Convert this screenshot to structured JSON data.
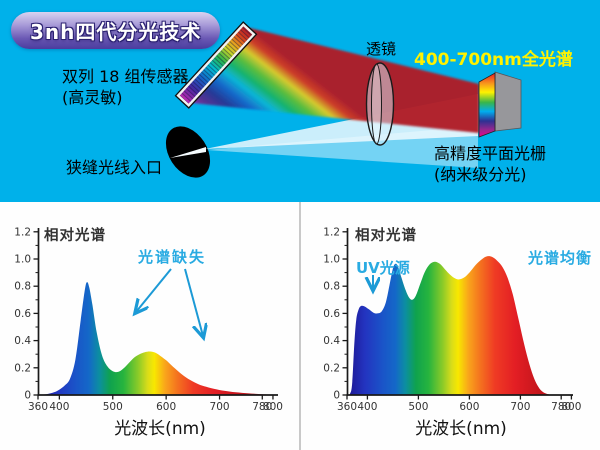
{
  "badge": {
    "label": "3nh四代分光技术"
  },
  "diagram": {
    "sensor_label_line1": "双列 18 组传感器",
    "sensor_label_line2": "(高灵敏)",
    "lens_label": "透镜",
    "spectrum_range_label": "400-700nm全光谱",
    "grating_label_line1": "高精度平面光栅",
    "grating_label_line2": "(纳米级分光)",
    "slit_label": "狭缝光线入口"
  },
  "colors": {
    "background_blue": "#00B1EA",
    "panel_white": "#FEFEFE",
    "accent_cyan": "#29ABE2",
    "arrow_cyan": "#1C9AD6",
    "highlight_yellow": "#FFF200",
    "spectrum_stops": [
      {
        "nm": 360,
        "color": "#1D1490"
      },
      {
        "nm": 395,
        "color": "#2334C0"
      },
      {
        "nm": 430,
        "color": "#1A54C8"
      },
      {
        "nm": 455,
        "color": "#1468C8"
      },
      {
        "nm": 475,
        "color": "#0C8FA0"
      },
      {
        "nm": 495,
        "color": "#0FA24E"
      },
      {
        "nm": 520,
        "color": "#27B43E"
      },
      {
        "nm": 548,
        "color": "#8CCB28"
      },
      {
        "nm": 565,
        "color": "#D8DC1A"
      },
      {
        "nm": 578,
        "color": "#F8E800"
      },
      {
        "nm": 598,
        "color": "#F9A51B"
      },
      {
        "nm": 622,
        "color": "#F4711F"
      },
      {
        "nm": 650,
        "color": "#EF3B24"
      },
      {
        "nm": 690,
        "color": "#E31E24"
      },
      {
        "nm": 740,
        "color": "#C3151C"
      },
      {
        "nm": 800,
        "color": "#96101A"
      }
    ]
  },
  "chart_data": [
    {
      "type": "area",
      "title": "相对光谱",
      "xlabel": "光波长(nm)",
      "ylabel": "",
      "xlim": [
        360,
        800
      ],
      "ylim": [
        0,
        1.2
      ],
      "x_ticks": [
        360,
        400,
        500,
        600,
        700,
        780,
        800
      ],
      "y_ticks": [
        0,
        0.2,
        0.4,
        0.6,
        0.8,
        1.0,
        1.2
      ],
      "grid": false,
      "legend": "none",
      "annotations": [
        {
          "text": "光谱缺失",
          "color": "#29ABE2"
        }
      ],
      "x": [
        360,
        375,
        390,
        400,
        410,
        420,
        430,
        440,
        448,
        452,
        456,
        462,
        470,
        480,
        490,
        500,
        510,
        520,
        530,
        540,
        550,
        560,
        570,
        580,
        590,
        600,
        615,
        630,
        645,
        660,
        675,
        690,
        710,
        730,
        755,
        780,
        800
      ],
      "y": [
        0,
        0.005,
        0.02,
        0.04,
        0.07,
        0.12,
        0.26,
        0.55,
        0.78,
        0.83,
        0.79,
        0.66,
        0.46,
        0.29,
        0.21,
        0.175,
        0.17,
        0.195,
        0.235,
        0.275,
        0.3,
        0.315,
        0.32,
        0.31,
        0.285,
        0.255,
        0.2,
        0.15,
        0.11,
        0.08,
        0.06,
        0.045,
        0.03,
        0.02,
        0.012,
        0.006,
        0.003
      ]
    },
    {
      "type": "area",
      "title": "相对光谱",
      "xlabel": "光波长(nm)",
      "ylabel": "",
      "xlim": [
        360,
        800
      ],
      "ylim": [
        0,
        1.2
      ],
      "x_ticks": [
        360,
        400,
        500,
        600,
        700,
        780,
        800
      ],
      "y_ticks": [
        0,
        0.2,
        0.4,
        0.6,
        0.8,
        1.0,
        1.2
      ],
      "grid": false,
      "legend": "none",
      "annotations": [
        {
          "text": "UV光源",
          "color": "#29ABE2"
        },
        {
          "text": "光谱均衡",
          "color": "#29ABE2"
        }
      ],
      "x": [
        360,
        366,
        370,
        374,
        378,
        383,
        388,
        395,
        403,
        412,
        420,
        428,
        436,
        444,
        450,
        455,
        460,
        467,
        475,
        482,
        488,
        495,
        503,
        512,
        522,
        532,
        542,
        552,
        562,
        572,
        580,
        590,
        600,
        612,
        625,
        635,
        645,
        655,
        665,
        675,
        685,
        695,
        705,
        715,
        725,
        735,
        745,
        755,
        765,
        800
      ],
      "y": [
        0,
        0.01,
        0.08,
        0.35,
        0.55,
        0.63,
        0.655,
        0.65,
        0.63,
        0.605,
        0.6,
        0.615,
        0.68,
        0.82,
        0.93,
        0.965,
        0.945,
        0.86,
        0.77,
        0.715,
        0.7,
        0.73,
        0.81,
        0.9,
        0.96,
        0.98,
        0.965,
        0.925,
        0.885,
        0.857,
        0.85,
        0.865,
        0.9,
        0.955,
        1.0,
        1.02,
        1.015,
        0.985,
        0.94,
        0.86,
        0.74,
        0.58,
        0.41,
        0.26,
        0.14,
        0.06,
        0.02,
        0.005,
        0,
        0
      ]
    }
  ]
}
